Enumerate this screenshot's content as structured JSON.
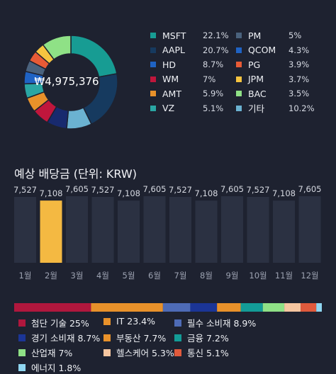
{
  "donut": {
    "total": "₩4,975,376",
    "items": [
      {
        "name": "MSFT",
        "pct": "22.1%",
        "value": 22.1,
        "color": "#179c93"
      },
      {
        "name": "AAPL",
        "pct": "20.7%",
        "value": 20.7,
        "color": "#163a5f"
      },
      {
        "name": "HD",
        "pct": "8.7%",
        "value": 8.7,
        "color": "#6bb2d1"
      },
      {
        "name": "WM",
        "pct": "7%",
        "value": 7.0,
        "color": "#182a6e"
      },
      {
        "name": "AMT",
        "pct": "5.9%",
        "value": 5.9,
        "color": "#c0163c"
      },
      {
        "name": "VZ",
        "pct": "5.1%",
        "value": 5.1,
        "color": "#e8912a"
      },
      {
        "name": "PM",
        "pct": "5%",
        "value": 5.0,
        "color": "#2aa6a3"
      },
      {
        "name": "QCOM",
        "pct": "4.3%",
        "value": 4.3,
        "color": "#1f63c4"
      },
      {
        "name": "PG",
        "pct": "3.9%",
        "value": 3.9,
        "color": "#4a627d"
      },
      {
        "name": "JPM",
        "pct": "3.7%",
        "value": 3.7,
        "color": "#e85b36"
      },
      {
        "name": "BAC",
        "pct": "3.5%",
        "value": 3.5,
        "color": "#f6c440"
      },
      {
        "name": "기타",
        "pct": "10.2%",
        "value": 10.2,
        "color": "#8fe186"
      }
    ],
    "legend_colors": [
      "#179c93",
      "#163a5f",
      "#1f63c4",
      "#c0163c",
      "#e8912a",
      "#2aa6a3",
      "#4a627d",
      "#1f63c4",
      "#e85b36",
      "#f6c440",
      "#8fe186",
      "#6bb2d1"
    ]
  },
  "chart_data": {
    "type": "bar",
    "title": "예상 배당금 (단위: KRW)",
    "categories": [
      "1월",
      "2월",
      "3월",
      "4월",
      "5월",
      "6월",
      "7월",
      "8월",
      "9월",
      "10월",
      "11월",
      "12월"
    ],
    "values": [
      7527,
      7108,
      7605,
      7527,
      7108,
      7605,
      7527,
      7108,
      7605,
      7527,
      7108,
      7605
    ],
    "value_labels": [
      "7,527",
      "7,108",
      "7,605",
      "7,527",
      "7,108",
      "7,605",
      "7,527",
      "7,108",
      "7,605",
      "7,527",
      "7,108",
      "7,605"
    ],
    "highlight_index": 1,
    "bar_color": "#2b3142",
    "highlight_color": "#f4b942",
    "ylim": [
      0,
      7605
    ]
  },
  "sectors": {
    "items": [
      {
        "label": "첨단 기술 25%",
        "value": 25,
        "color": "#b0173d"
      },
      {
        "label": "IT 23.4%",
        "value": 23.4,
        "color": "#e8912a"
      },
      {
        "label": "필수 소비재 8.9%",
        "value": 8.9,
        "color": "#4e6bb6"
      },
      {
        "label": "경기 소비재 8.7%",
        "value": 8.7,
        "color": "#1b3596"
      },
      {
        "label": "부동산 7.7%",
        "value": 7.7,
        "color": "#e8912a"
      },
      {
        "label": "금융 7.2%",
        "value": 7.2,
        "color": "#139c97"
      },
      {
        "label": "산업재 7%",
        "value": 7.0,
        "color": "#8fe186"
      },
      {
        "label": "헬스케어 5.3%",
        "value": 5.3,
        "color": "#f6c6a0"
      },
      {
        "label": "통신 5.1%",
        "value": 5.1,
        "color": "#e05a3c"
      },
      {
        "label": "에너지 1.8%",
        "value": 1.8,
        "color": "#8fd6f0"
      }
    ]
  }
}
